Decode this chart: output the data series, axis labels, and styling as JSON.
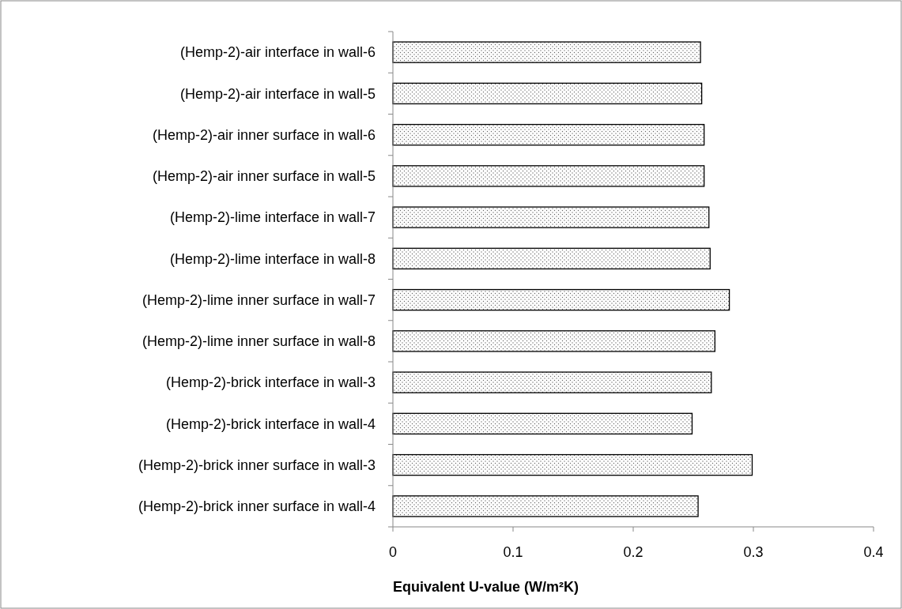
{
  "chart_data": {
    "type": "bar",
    "orientation": "horizontal",
    "categories": [
      "(Hemp-2)-air interface in wall-6",
      "(Hemp-2)-air interface in wall-5",
      "(Hemp-2)-air inner surface in wall-6",
      "(Hemp-2)-air inner surface in wall-5",
      "(Hemp-2)-lime interface in wall-7",
      "(Hemp-2)-lime interface in wall-8",
      "(Hemp-2)-lime inner surface in wall-7",
      "(Hemp-2)-lime inner surface in wall-8",
      "(Hemp-2)-brick interface in wall-3",
      "(Hemp-2)-brick interface in wall-4",
      "(Hemp-2)-brick inner surface in wall-3",
      "(Hemp-2)-brick inner surface in wall-4"
    ],
    "values": [
      0.256,
      0.257,
      0.259,
      0.259,
      0.263,
      0.264,
      0.28,
      0.268,
      0.265,
      0.249,
      0.299,
      0.254
    ],
    "color": "#000000",
    "xlabel": "Equivalent U-value (W/m²K)",
    "xlim": [
      0,
      0.4
    ],
    "xticks": [
      0,
      0.1,
      0.2,
      0.3,
      0.4
    ],
    "grid": false
  }
}
